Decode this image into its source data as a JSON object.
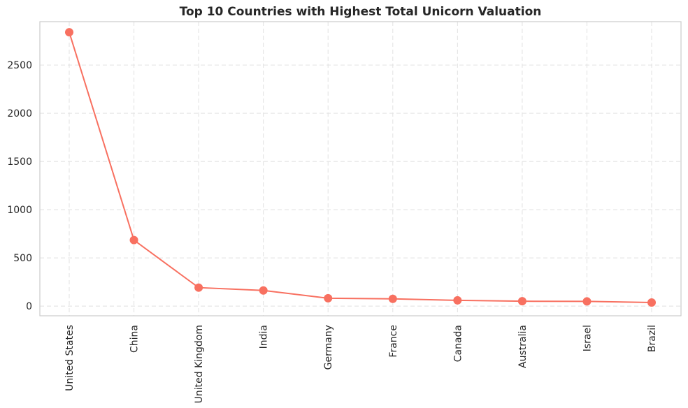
{
  "chart_data": {
    "type": "line",
    "title": "Top 10 Countries with Highest Total Unicorn Valuation",
    "xlabel": "",
    "ylabel": "",
    "categories": [
      "United States",
      "China",
      "United Kingdom",
      "India",
      "Germany",
      "France",
      "Canada",
      "Australia",
      "Israel",
      "Brazil"
    ],
    "series": [
      {
        "values": [
          2840,
          685,
          192,
          163,
          82,
          76,
          60,
          51,
          49,
          38
        ]
      }
    ],
    "ylim": [
      -100,
      2950
    ],
    "yticks": [
      0,
      500,
      1000,
      1500,
      2000,
      2500
    ],
    "grid": true,
    "grid_style": "dashed",
    "line_color": "#f87060",
    "marker": "circle",
    "legend": "none"
  }
}
